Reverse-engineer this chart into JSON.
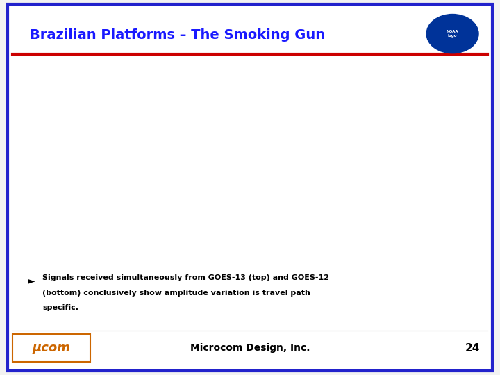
{
  "title": "Brazilian Platforms – The Smoking Gun",
  "title_color": "#1a1aff",
  "background_color": "#ffffff",
  "border_color": "#2222cc",
  "red_line_color": "#cc0000",
  "slide_bg": "#f2f2f2",
  "bullet_line1": "Signals received simultaneously from GOES-13 (top) and GOES-12",
  "bullet_line2": "(bottom) conclusively show amplitude variation is travel path",
  "bullet_line3": "specific.",
  "footer_text": "Microcom Design, Inc.",
  "page_number": "24",
  "separator_color": "#cc0000",
  "dashed_vert_color": "#4444aa",
  "dashed_horiz_color": "#333333"
}
